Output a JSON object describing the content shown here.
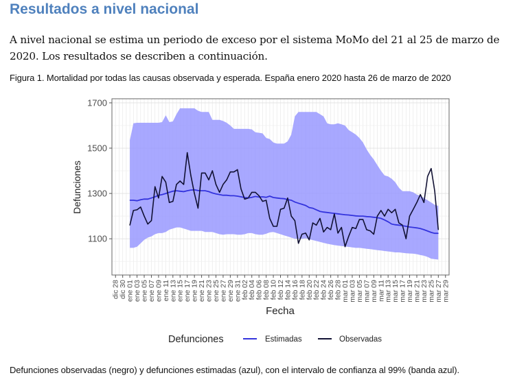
{
  "heading": "Resultados a nivel nacional",
  "paragraph": "A nivel nacional se estima un periodo de exceso por el sistema MoMo del 21 al 25 de marzo de 2020. Los resultados se describen a continuación.",
  "figure_caption": "Figura 1. Mortalidad por todas las causas observada y esperada. España enero 2020 hasta 26 de marzo de 2020",
  "footer_caption": "Defunciones observadas (negro) y defunciones estimadas (azul), con el intervalo de confianza al 99% (banda azul).",
  "chart_data": {
    "type": "line",
    "title": "",
    "xlabel": "Fecha",
    "ylabel": "Defunciones",
    "ylim": [
      940,
      1718
    ],
    "yticks": [
      1100,
      1300,
      1500,
      1700
    ],
    "grid": true,
    "x_start": "2019-12-27",
    "x_end": "2020-03-30",
    "xtick_labels": [
      "dic 28",
      "dic 30",
      "ene 01",
      "ene 03",
      "ene 05",
      "ene 07",
      "ene 09",
      "ene 11",
      "ene 13",
      "ene 15",
      "ene 17",
      "ene 19",
      "ene 21",
      "ene 23",
      "ene 25",
      "ene 27",
      "ene 29",
      "ene 31",
      "feb 02",
      "feb 04",
      "feb 06",
      "feb 08",
      "feb 10",
      "feb 12",
      "feb 14",
      "feb 16",
      "feb 18",
      "feb 20",
      "feb 22",
      "feb 24",
      "feb 26",
      "feb 28",
      "mar 01",
      "mar 03",
      "mar 05",
      "mar 07",
      "mar 09",
      "mar 11",
      "mar 13",
      "mar 15",
      "mar 17",
      "mar 19",
      "mar 21",
      "mar 23",
      "mar 25",
      "mar 27",
      "mar 29"
    ],
    "legend": {
      "title": "Defunciones",
      "position": "bottom",
      "entries": [
        {
          "label": "Estimadas",
          "color": "#3333dd"
        },
        {
          "label": "Observadas",
          "color": "#111133"
        }
      ]
    },
    "band_color": "#9999ff",
    "dates_start": "2020-01-01",
    "series": [
      {
        "name": "Observadas",
        "values": [
          1160,
          1225,
          1228,
          1240,
          1200,
          1165,
          1180,
          1330,
          1280,
          1375,
          1350,
          1260,
          1265,
          1340,
          1355,
          1340,
          1480,
          1380,
          1300,
          1235,
          1390,
          1390,
          1360,
          1400,
          1340,
          1305,
          1340,
          1360,
          1395,
          1395,
          1405,
          1320,
          1275,
          1280,
          1305,
          1305,
          1290,
          1265,
          1270,
          1190,
          1155,
          1155,
          1230,
          1235,
          1280,
          1200,
          1180,
          1080,
          1120,
          1125,
          1095,
          1170,
          1160,
          1190,
          1130,
          1150,
          1140,
          1210,
          1125,
          1150,
          1065,
          1110,
          1150,
          1145,
          1185,
          1185,
          1140,
          1135,
          1120,
          1200,
          1225,
          1200,
          1230,
          1215,
          1230,
          1170,
          1160,
          1100,
          1200,
          1230,
          1260,
          1295,
          1260,
          1375,
          1410,
          1310,
          1140
        ]
      },
      {
        "name": "Estimadas",
        "values": [
          1270,
          1270,
          1268,
          1272,
          1275,
          1275,
          1280,
          1285,
          1292,
          1295,
          1300,
          1305,
          1310,
          1312,
          1310,
          1308,
          1312,
          1315,
          1316,
          1313,
          1312,
          1312,
          1308,
          1302,
          1298,
          1295,
          1292,
          1292,
          1290,
          1290,
          1288,
          1285,
          1282,
          1280,
          1283,
          1287,
          1284,
          1285,
          1283,
          1288,
          1282,
          1280,
          1278,
          1277,
          1273,
          1270,
          1262,
          1257,
          1252,
          1247,
          1238,
          1235,
          1228,
          1221,
          1218,
          1216,
          1214,
          1212,
          1210,
          1208,
          1206,
          1205,
          1203,
          1201,
          1200,
          1200,
          1198,
          1197,
          1195,
          1193,
          1190,
          1183,
          1175,
          1165,
          1162,
          1160,
          1158,
          1155,
          1152,
          1150,
          1148,
          1145,
          1140,
          1134,
          1128,
          1124,
          1124
        ]
      },
      {
        "name": "IC 99% inferior",
        "values": [
          1060,
          1060,
          1065,
          1080,
          1095,
          1105,
          1110,
          1120,
          1125,
          1125,
          1130,
          1140,
          1145,
          1150,
          1150,
          1145,
          1140,
          1135,
          1135,
          1135,
          1135,
          1130,
          1130,
          1130,
          1125,
          1120,
          1118,
          1120,
          1120,
          1120,
          1118,
          1118,
          1120,
          1125,
          1125,
          1120,
          1118,
          1118,
          1122,
          1128,
          1130,
          1125,
          1120,
          1115,
          1110,
          1105,
          1100,
          1100,
          1100,
          1102,
          1098,
          1094,
          1090,
          1086,
          1082,
          1078,
          1075,
          1072,
          1070,
          1068,
          1066,
          1064,
          1062,
          1060,
          1060,
          1058,
          1056,
          1054,
          1052,
          1050,
          1048,
          1046,
          1044,
          1042,
          1040,
          1040,
          1038,
          1036,
          1035,
          1034,
          1032,
          1028,
          1025,
          1020,
          1012,
          1010,
          1008
        ]
      },
      {
        "name": "IC 99% superior",
        "values": [
          1535,
          1610,
          1612,
          1612,
          1612,
          1612,
          1612,
          1612,
          1612,
          1615,
          1645,
          1615,
          1618,
          1650,
          1676,
          1676,
          1676,
          1676,
          1676,
          1665,
          1660,
          1660,
          1660,
          1625,
          1625,
          1625,
          1620,
          1612,
          1600,
          1585,
          1585,
          1585,
          1585,
          1585,
          1583,
          1570,
          1568,
          1565,
          1545,
          1540,
          1525,
          1520,
          1520,
          1520,
          1530,
          1560,
          1640,
          1660,
          1660,
          1660,
          1660,
          1660,
          1660,
          1650,
          1640,
          1610,
          1605,
          1605,
          1610,
          1605,
          1600,
          1580,
          1570,
          1560,
          1545,
          1525,
          1495,
          1470,
          1450,
          1425,
          1400,
          1380,
          1375,
          1365,
          1350,
          1325,
          1310,
          1310,
          1310,
          1305,
          1295,
          1290,
          1280,
          1270,
          1260,
          1250,
          1245
        ]
      }
    ]
  }
}
